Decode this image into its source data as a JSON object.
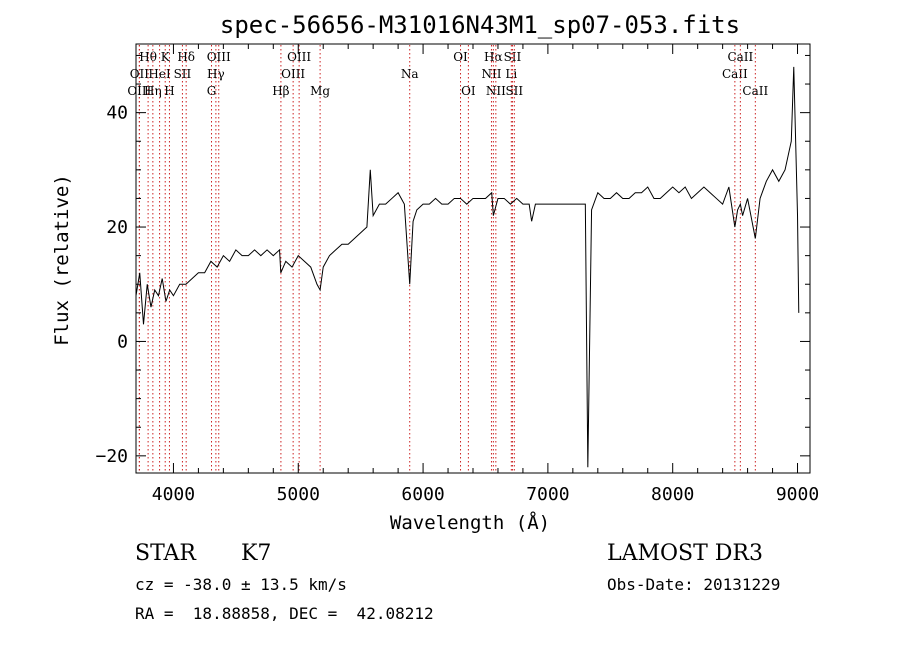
{
  "chart_data": {
    "type": "line",
    "title": "spec-56656-M31016N43M1_sp07-053.fits",
    "xlabel": "Wavelength (Å)",
    "ylabel": "Flux (relative)",
    "xlim": [
      3700,
      9100
    ],
    "ylim": [
      -23,
      52
    ],
    "xticks": [
      4000,
      5000,
      6000,
      7000,
      8000,
      9000
    ],
    "yticks": [
      -20,
      0,
      20,
      40
    ],
    "line_color": "#000000",
    "marker_color": "#cc2222",
    "series": [
      {
        "name": "flux",
        "x": [
          3700,
          3730,
          3760,
          3790,
          3820,
          3850,
          3880,
          3910,
          3940,
          3970,
          4000,
          4050,
          4100,
          4150,
          4200,
          4250,
          4300,
          4350,
          4400,
          4450,
          4500,
          4550,
          4600,
          4650,
          4700,
          4750,
          4800,
          4850,
          4860,
          4900,
          4950,
          5000,
          5050,
          5100,
          5150,
          5175,
          5200,
          5250,
          5300,
          5350,
          5400,
          5450,
          5500,
          5550,
          5577,
          5600,
          5650,
          5700,
          5750,
          5800,
          5850,
          5893,
          5920,
          5950,
          6000,
          6050,
          6100,
          6150,
          6200,
          6250,
          6300,
          6350,
          6400,
          6450,
          6500,
          6550,
          6563,
          6600,
          6650,
          6700,
          6750,
          6800,
          6850,
          6870,
          6900,
          6950,
          7000,
          7050,
          7100,
          7150,
          7200,
          7250,
          7300,
          7320,
          7350,
          7400,
          7450,
          7500,
          7550,
          7600,
          7650,
          7700,
          7750,
          7800,
          7850,
          7900,
          7950,
          8000,
          8050,
          8100,
          8150,
          8200,
          8250,
          8300,
          8350,
          8400,
          8450,
          8498,
          8520,
          8542,
          8560,
          8600,
          8662,
          8700,
          8750,
          8800,
          8850,
          8900,
          8950,
          8970,
          9000,
          9010
        ],
        "y": [
          8,
          12,
          3,
          10,
          6,
          9,
          8,
          11,
          7,
          9,
          8,
          10,
          10,
          11,
          12,
          12,
          14,
          13,
          15,
          14,
          16,
          15,
          15,
          16,
          15,
          16,
          15,
          16,
          12,
          14,
          13,
          15,
          14,
          13,
          10,
          9,
          13,
          15,
          16,
          17,
          17,
          18,
          19,
          20,
          30,
          22,
          24,
          24,
          25,
          26,
          24,
          10,
          21,
          23,
          24,
          24,
          25,
          24,
          24,
          25,
          25,
          24,
          25,
          25,
          25,
          26,
          22,
          25,
          25,
          24,
          25,
          24,
          24,
          21,
          24,
          24,
          24,
          24,
          24,
          24,
          24,
          24,
          24,
          -22,
          23,
          26,
          25,
          25,
          26,
          25,
          25,
          26,
          26,
          27,
          25,
          25,
          26,
          27,
          26,
          27,
          25,
          26,
          27,
          26,
          25,
          24,
          27,
          20,
          23,
          24,
          22,
          25,
          18,
          25,
          28,
          30,
          28,
          30,
          35,
          48,
          22,
          5
        ]
      }
    ],
    "line_markers": [
      {
        "label": "OII",
        "x": 3727,
        "row": 2
      },
      {
        "label": "OIII",
        "x": 3727,
        "row": 3
      },
      {
        "label": "Hθ",
        "x": 3797,
        "row": 1
      },
      {
        "label": "Hη",
        "x": 3835,
        "row": 3
      },
      {
        "label": "HeI",
        "x": 3889,
        "row": 2
      },
      {
        "label": "K",
        "x": 3934,
        "row": 1
      },
      {
        "label": "H",
        "x": 3968,
        "row": 3
      },
      {
        "label": "SII",
        "x": 4072,
        "row": 2
      },
      {
        "label": "Hδ",
        "x": 4102,
        "row": 1
      },
      {
        "label": "G",
        "x": 4305,
        "row": 3
      },
      {
        "label": "Hγ",
        "x": 4340,
        "row": 2
      },
      {
        "label": "OIII",
        "x": 4363,
        "row": 1
      },
      {
        "label": "Hβ",
        "x": 4861,
        "row": 3
      },
      {
        "label": "OIII",
        "x": 4959,
        "row": 2
      },
      {
        "label": "OIII",
        "x": 5007,
        "row": 1
      },
      {
        "label": "Mg",
        "x": 5175,
        "row": 3
      },
      {
        "label": "Na",
        "x": 5893,
        "row": 2
      },
      {
        "label": "OI",
        "x": 6300,
        "row": 1
      },
      {
        "label": "OI",
        "x": 6363,
        "row": 3
      },
      {
        "label": "NII",
        "x": 6548,
        "row": 2
      },
      {
        "label": "Hα",
        "x": 6563,
        "row": 1
      },
      {
        "label": "NII",
        "x": 6583,
        "row": 3
      },
      {
        "label": "Li",
        "x": 6707,
        "row": 2
      },
      {
        "label": "SII",
        "x": 6716,
        "row": 1
      },
      {
        "label": "SII",
        "x": 6731,
        "row": 3
      },
      {
        "label": "CaII",
        "x": 8498,
        "row": 2
      },
      {
        "label": "CaII",
        "x": 8542,
        "row": 1
      },
      {
        "label": "CaII",
        "x": 8662,
        "row": 3
      }
    ]
  },
  "info": {
    "class": "STAR",
    "subclass": "K7",
    "survey": "LAMOST DR3",
    "cz": "cz = -38.0 ± 13.5 km/s",
    "obs_date": "Obs-Date: 20131229",
    "coords": "RA =  18.88858, DEC =  42.08212"
  }
}
